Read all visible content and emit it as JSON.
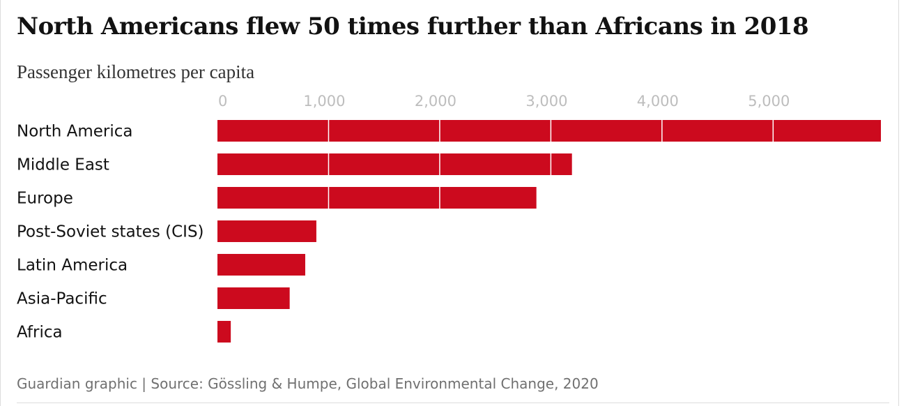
{
  "header": {
    "title": "North Americans flew 50 times further than Africans in 2018",
    "subtitle": "Passenger kilometres per capita"
  },
  "footer": {
    "source": "Guardian graphic | Source: Gössling & Humpe, Global Environmental Change, 2020"
  },
  "colors": {
    "bar": "#cc0a1e",
    "gridline_over_bar": "#ffffff",
    "tick_label": "#bdbdbd",
    "category_label": "#121212"
  },
  "chart_data": {
    "type": "bar",
    "orientation": "horizontal",
    "title": "North Americans flew 50 times further than Africans in 2018",
    "subtitle": "Passenger kilometres per capita",
    "categories": [
      "North America",
      "Middle East",
      "Europe",
      "Post-Soviet states (CIS)",
      "Latin America",
      "Asia-Pacific",
      "Africa"
    ],
    "values": [
      5970,
      3190,
      2870,
      890,
      790,
      650,
      120
    ],
    "xlim": [
      0,
      5970
    ],
    "x_ticks": [
      0,
      1000,
      2000,
      3000,
      4000,
      5000
    ],
    "x_tick_labels": [
      "0",
      "1,000",
      "2,000",
      "3,000",
      "4,000",
      "5,000"
    ],
    "axis_position": "top",
    "grid": true,
    "legend": "none"
  }
}
